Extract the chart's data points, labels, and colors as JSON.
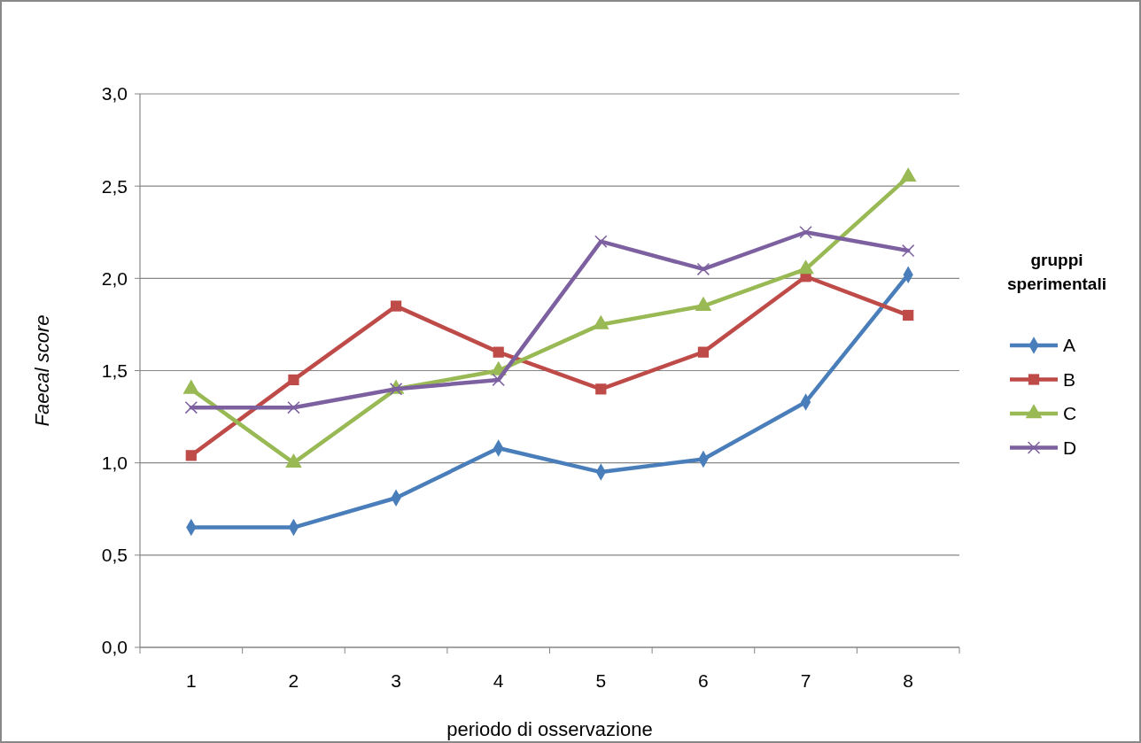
{
  "chart_data": {
    "type": "line",
    "xlabel": "periodo di osservazione",
    "ylabel": "Faecal score",
    "legend_title": "gruppi sperimentali",
    "categories": [
      "1",
      "2",
      "3",
      "4",
      "5",
      "6",
      "7",
      "8"
    ],
    "series": [
      {
        "name": "A",
        "color": "#4a7ebb",
        "marker": "diamond",
        "values": [
          0.65,
          0.65,
          0.81,
          1.08,
          0.95,
          1.02,
          1.33,
          2.02
        ]
      },
      {
        "name": "B",
        "color": "#be4b48",
        "marker": "square",
        "values": [
          1.04,
          1.45,
          1.85,
          1.6,
          1.4,
          1.6,
          2.01,
          1.8
        ]
      },
      {
        "name": "C",
        "color": "#98b954",
        "marker": "triangle",
        "values": [
          1.4,
          1.0,
          1.4,
          1.5,
          1.75,
          1.85,
          2.05,
          2.55
        ]
      },
      {
        "name": "D",
        "color": "#7d60a0",
        "marker": "cross",
        "values": [
          1.3,
          1.3,
          1.4,
          1.45,
          2.2,
          2.05,
          2.25,
          2.15
        ]
      }
    ],
    "ylim": [
      0,
      3
    ],
    "yticks": [
      {
        "value": 0,
        "label": "0,0"
      },
      {
        "value": 0.5,
        "label": "0,5"
      },
      {
        "value": 1,
        "label": "1,0"
      },
      {
        "value": 1.5,
        "label": "1,5"
      },
      {
        "value": 2,
        "label": "2,0"
      },
      {
        "value": 2.5,
        "label": "2,5"
      },
      {
        "value": 3,
        "label": "3,0"
      }
    ],
    "grid": "y",
    "legend": "right",
    "line_style": "solid"
  }
}
